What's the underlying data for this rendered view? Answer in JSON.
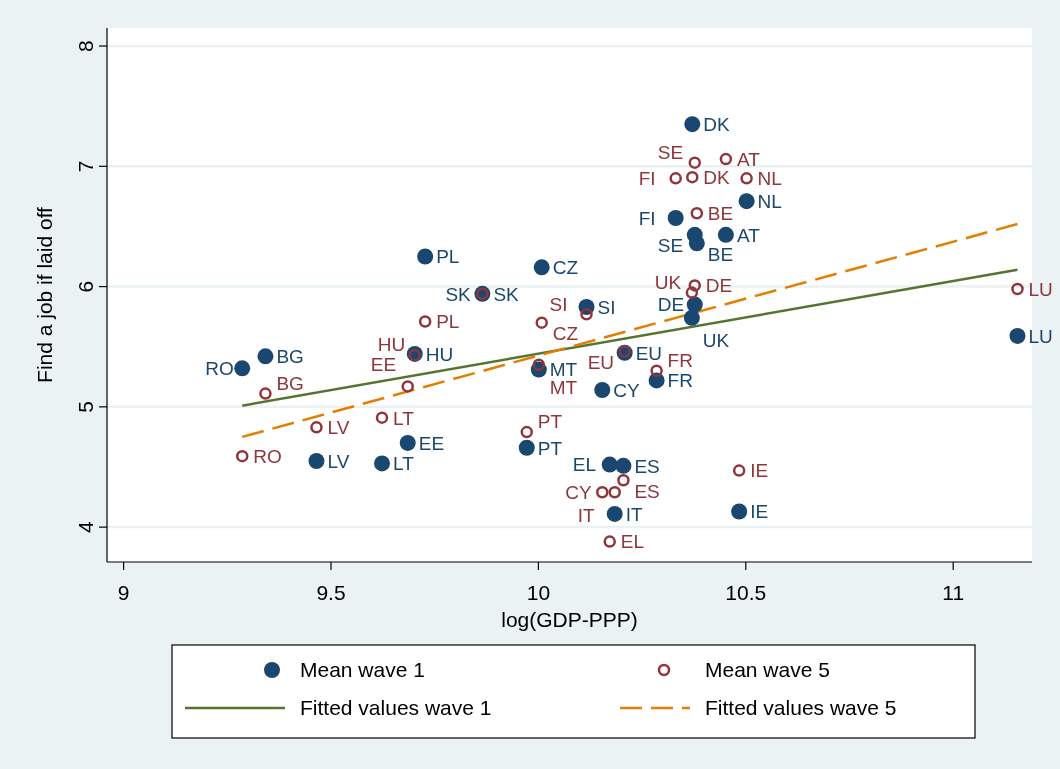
{
  "chart_data": {
    "type": "scatter",
    "xlabel": "log(GDP-PPP)",
    "ylabel": "Find a job if laid off",
    "xlim": [
      8.96,
      11.19
    ],
    "ylim": [
      3.71,
      8.15
    ],
    "xticks": [
      9,
      9.5,
      10,
      10.5,
      11
    ],
    "yticks": [
      4,
      5,
      6,
      7,
      8
    ],
    "grid": "y",
    "legend": "bottom",
    "series": [
      {
        "name": "Mean wave 1",
        "marker": "circle",
        "color": "#1a476f",
        "x": [
          9.286,
          9.342,
          9.465,
          9.623,
          9.685,
          9.702,
          9.727,
          9.865,
          10.008,
          10.001,
          9.972,
          10.116,
          10.154,
          10.172,
          10.205,
          10.184,
          10.208,
          10.285,
          10.331,
          10.371,
          10.377,
          10.452,
          10.382,
          10.377,
          10.37,
          10.502,
          10.484,
          11.155
        ],
        "values": [
          5.32,
          5.42,
          4.55,
          4.53,
          4.7,
          5.44,
          6.25,
          5.94,
          6.16,
          5.31,
          4.66,
          5.83,
          5.14,
          4.52,
          4.51,
          4.11,
          5.45,
          5.22,
          6.57,
          7.35,
          6.43,
          6.43,
          6.36,
          5.85,
          5.74,
          6.71,
          4.13,
          5.59
        ]
      },
      {
        "name": "Mean wave 5",
        "marker": "circle-open",
        "color": "#90353b",
        "x": [
          9.286,
          9.342,
          9.465,
          9.623,
          9.685,
          9.702,
          9.727,
          9.865,
          10.008,
          10.001,
          9.972,
          10.116,
          10.154,
          10.172,
          10.205,
          10.184,
          10.208,
          10.285,
          10.331,
          10.371,
          10.377,
          10.452,
          10.382,
          10.377,
          10.37,
          10.502,
          10.484,
          11.155
        ],
        "values": [
          4.59,
          5.11,
          4.83,
          4.91,
          5.17,
          5.43,
          5.71,
          5.94,
          5.7,
          5.35,
          4.79,
          5.77,
          4.29,
          3.88,
          4.39,
          4.29,
          5.46,
          5.3,
          6.9,
          6.91,
          7.03,
          7.06,
          6.61,
          6.01,
          5.95,
          6.9,
          4.47,
          5.98
        ]
      },
      {
        "name": "Fitted values wave 1",
        "type": "line",
        "marker": "none",
        "line_style": "solid",
        "color": "#55752f",
        "x": [
          9.286,
          11.155
        ],
        "values": [
          5.01,
          6.14
        ]
      },
      {
        "name": "Fitted values wave 5",
        "type": "line",
        "marker": "none",
        "line_style": "dashed",
        "color": "#e37e00",
        "x": [
          9.286,
          11.155
        ],
        "values": [
          4.75,
          6.52
        ]
      }
    ],
    "annotations": [
      {
        "text": "RO",
        "x": 9.286,
        "y": 5.32
      },
      {
        "text": "BG",
        "x": 9.342,
        "y": 5.42
      },
      {
        "text": "LV",
        "x": 9.465,
        "y": 4.55
      },
      {
        "text": "LT",
        "x": 9.623,
        "y": 4.53
      },
      {
        "text": "EE",
        "x": 9.685,
        "y": 4.7
      },
      {
        "text": "HU",
        "x": 9.702,
        "y": 5.44
      },
      {
        "text": "PL",
        "x": 9.727,
        "y": 6.25
      },
      {
        "text": "SK",
        "x": 9.865,
        "y": 5.94
      },
      {
        "text": "CZ",
        "x": 10.008,
        "y": 6.16
      },
      {
        "text": "MT",
        "x": 10.001,
        "y": 5.31
      },
      {
        "text": "PT",
        "x": 9.972,
        "y": 4.66
      },
      {
        "text": "SI",
        "x": 10.116,
        "y": 5.83
      },
      {
        "text": "CY",
        "x": 10.154,
        "y": 5.14
      },
      {
        "text": "EL",
        "x": 10.172,
        "y": 4.52
      },
      {
        "text": "ES",
        "x": 10.205,
        "y": 4.51
      },
      {
        "text": "IT",
        "x": 10.184,
        "y": 4.11
      },
      {
        "text": "EU",
        "x": 10.208,
        "y": 5.45
      },
      {
        "text": "FR",
        "x": 10.285,
        "y": 5.22
      },
      {
        "text": "FI",
        "x": 10.331,
        "y": 6.57
      },
      {
        "text": "DK",
        "x": 10.371,
        "y": 7.35
      },
      {
        "text": "SE",
        "x": 10.377,
        "y": 6.43
      },
      {
        "text": "AT",
        "x": 10.452,
        "y": 6.43
      },
      {
        "text": "BE",
        "x": 10.382,
        "y": 6.36
      },
      {
        "text": "DE",
        "x": 10.377,
        "y": 5.85
      },
      {
        "text": "UK",
        "x": 10.37,
        "y": 5.74
      },
      {
        "text": "NL",
        "x": 10.502,
        "y": 6.71
      },
      {
        "text": "IE",
        "x": 10.484,
        "y": 4.13
      },
      {
        "text": "LU",
        "x": 11.155,
        "y": 5.59
      },
      {
        "text": "RO",
        "x": 9.286,
        "y": 4.59
      },
      {
        "text": "BG",
        "x": 9.342,
        "y": 5.11
      },
      {
        "text": "LV",
        "x": 9.465,
        "y": 4.83
      },
      {
        "text": "LT",
        "x": 9.623,
        "y": 4.91
      },
      {
        "text": "EE",
        "x": 9.685,
        "y": 5.17
      },
      {
        "text": "HU",
        "x": 9.702,
        "y": 5.43
      },
      {
        "text": "PL",
        "x": 9.727,
        "y": 5.71
      },
      {
        "text": "SK",
        "x": 9.865,
        "y": 5.94
      },
      {
        "text": "CZ",
        "x": 10.008,
        "y": 5.7
      },
      {
        "text": "MT",
        "x": 10.001,
        "y": 5.35
      },
      {
        "text": "PT",
        "x": 9.972,
        "y": 4.79
      },
      {
        "text": "SI",
        "x": 10.116,
        "y": 5.77
      },
      {
        "text": "CY",
        "x": 10.154,
        "y": 4.29
      },
      {
        "text": "EL",
        "x": 10.172,
        "y": 3.88
      },
      {
        "text": "ES",
        "x": 10.205,
        "y": 4.39
      },
      {
        "text": "IT",
        "x": 10.184,
        "y": 4.29
      },
      {
        "text": "EU",
        "x": 10.208,
        "y": 5.46
      },
      {
        "text": "FR",
        "x": 10.285,
        "y": 5.3
      },
      {
        "text": "FI",
        "x": 10.331,
        "y": 6.9
      },
      {
        "text": "DK",
        "x": 10.371,
        "y": 6.91
      },
      {
        "text": "SE",
        "x": 10.377,
        "y": 7.03
      },
      {
        "text": "AT",
        "x": 10.452,
        "y": 7.06
      },
      {
        "text": "BE",
        "x": 10.382,
        "y": 6.61
      },
      {
        "text": "DE",
        "x": 10.377,
        "y": 6.01
      },
      {
        "text": "UK",
        "x": 10.37,
        "y": 5.95
      },
      {
        "text": "NL",
        "x": 10.502,
        "y": 6.9
      },
      {
        "text": "IE",
        "x": 10.484,
        "y": 4.47
      },
      {
        "text": "LU",
        "x": 11.155,
        "y": 5.98
      }
    ]
  }
}
